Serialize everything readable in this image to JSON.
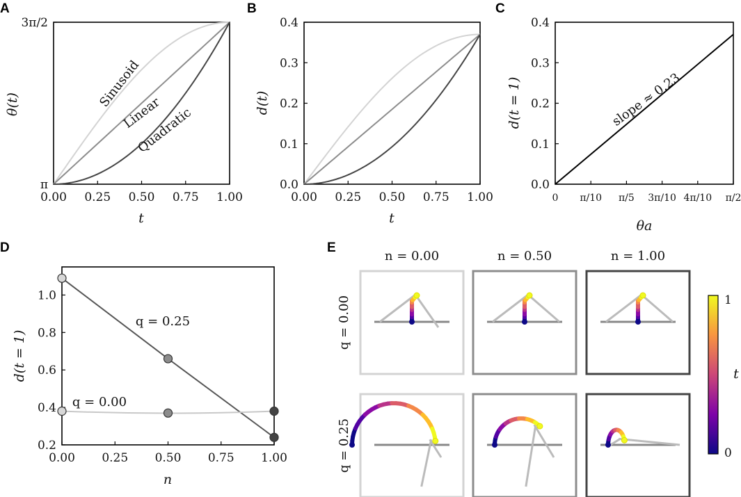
{
  "chart_data": [
    {
      "panel": "A",
      "type": "line",
      "xlabel": "t",
      "ylabel": "θ(t)",
      "xlim": [
        0,
        1
      ],
      "ylim": [
        3.14159,
        4.71239
      ],
      "x_ticks": [
        0.0,
        0.25,
        0.5,
        0.75,
        1.0
      ],
      "x_tick_labels": [
        "0.00",
        "0.25",
        "0.50",
        "0.75",
        "1.00"
      ],
      "y_ticks": [
        3.14159,
        4.71239
      ],
      "y_tick_labels": [
        "π",
        "3π/2"
      ],
      "series": [
        {
          "name": "Sinusoid",
          "shape": "sinusoid",
          "color": "#d3d3d3"
        },
        {
          "name": "Linear",
          "shape": "linear",
          "color": "#8c8c8c"
        },
        {
          "name": "Quadratic",
          "shape": "quadratic",
          "color": "#444444"
        }
      ]
    },
    {
      "panel": "B",
      "type": "line",
      "xlabel": "t",
      "ylabel": "d(t)",
      "xlim": [
        0,
        1
      ],
      "ylim": [
        0,
        0.4
      ],
      "x_ticks": [
        0.0,
        0.25,
        0.5,
        0.75,
        1.0
      ],
      "x_tick_labels": [
        "0.00",
        "0.25",
        "0.50",
        "0.75",
        "1.00"
      ],
      "y_ticks": [
        0.0,
        0.1,
        0.2,
        0.3,
        0.4
      ],
      "y_tick_labels": [
        "0.0",
        "0.1",
        "0.2",
        "0.3",
        "0.4"
      ],
      "endpoint": 0.37,
      "series": [
        {
          "name": "Sinusoid",
          "shape": "sinusoid",
          "color": "#d3d3d3"
        },
        {
          "name": "Linear",
          "shape": "linear",
          "color": "#8c8c8c"
        },
        {
          "name": "Quadratic",
          "shape": "quadratic",
          "color": "#444444"
        }
      ]
    },
    {
      "panel": "C",
      "type": "line",
      "xlabel": "θa",
      "ylabel": "d(t = 1)",
      "xlim": [
        0,
        1.5708
      ],
      "ylim": [
        0,
        0.4
      ],
      "x_ticks": [
        0,
        0.31416,
        0.62832,
        0.94248,
        1.25664,
        1.5708
      ],
      "x_tick_labels": [
        "0",
        "π/10",
        "π/5",
        "3π/10",
        "4π/10",
        "π/2"
      ],
      "y_ticks": [
        0.0,
        0.1,
        0.2,
        0.3,
        0.4
      ],
      "y_tick_labels": [
        "0.0",
        "0.1",
        "0.2",
        "0.3",
        "0.4"
      ],
      "series": [
        {
          "name": "d(t=1)",
          "x": [
            0,
            1.5708
          ],
          "y": [
            0,
            0.37
          ],
          "color": "#000000"
        }
      ],
      "annotation": "slope ≈ 0.23"
    },
    {
      "panel": "D",
      "type": "line",
      "xlabel": "n",
      "ylabel": "d(t = 1)",
      "xlim": [
        0,
        1
      ],
      "ylim": [
        0.2,
        1.15
      ],
      "x_ticks": [
        0.0,
        0.25,
        0.5,
        0.75,
        1.0
      ],
      "x_tick_labels": [
        "0.00",
        "0.25",
        "0.50",
        "0.75",
        "1.00"
      ],
      "y_ticks": [
        0.2,
        0.4,
        0.6,
        0.8,
        1.0
      ],
      "y_tick_labels": [
        "0.2",
        "0.4",
        "0.6",
        "0.8",
        "1.0"
      ],
      "series": [
        {
          "name": "q = 0.25",
          "x": [
            0,
            0.5,
            1.0
          ],
          "y": [
            1.09,
            0.66,
            0.24
          ],
          "curve_y_at_mid": 0.66,
          "color": "#555555",
          "marker_colors": [
            "#d8d8d8",
            "#8c8c8c",
            "#444444"
          ]
        },
        {
          "name": "q = 0.00",
          "x": [
            0,
            0.5,
            1.0
          ],
          "y": [
            0.38,
            0.37,
            0.38
          ],
          "color": "#c8c8c8",
          "marker_colors": [
            "#d8d8d8",
            "#8c8c8c",
            "#444444"
          ]
        }
      ]
    },
    {
      "panel": "E",
      "type": "image-grid",
      "column_labels": [
        "n = 0.00",
        "n = 0.50",
        "n = 1.00"
      ],
      "row_labels": [
        "q = 0.00",
        "q = 0.25"
      ],
      "border_colors": [
        "#d3d3d3",
        "#8c8c8c",
        "#444444"
      ],
      "colorbar": {
        "label": "t",
        "min_label": "0",
        "max_label": "1",
        "colormap": "plasma"
      }
    }
  ],
  "panel_letters": [
    "A",
    "B",
    "C",
    "D",
    "E"
  ]
}
